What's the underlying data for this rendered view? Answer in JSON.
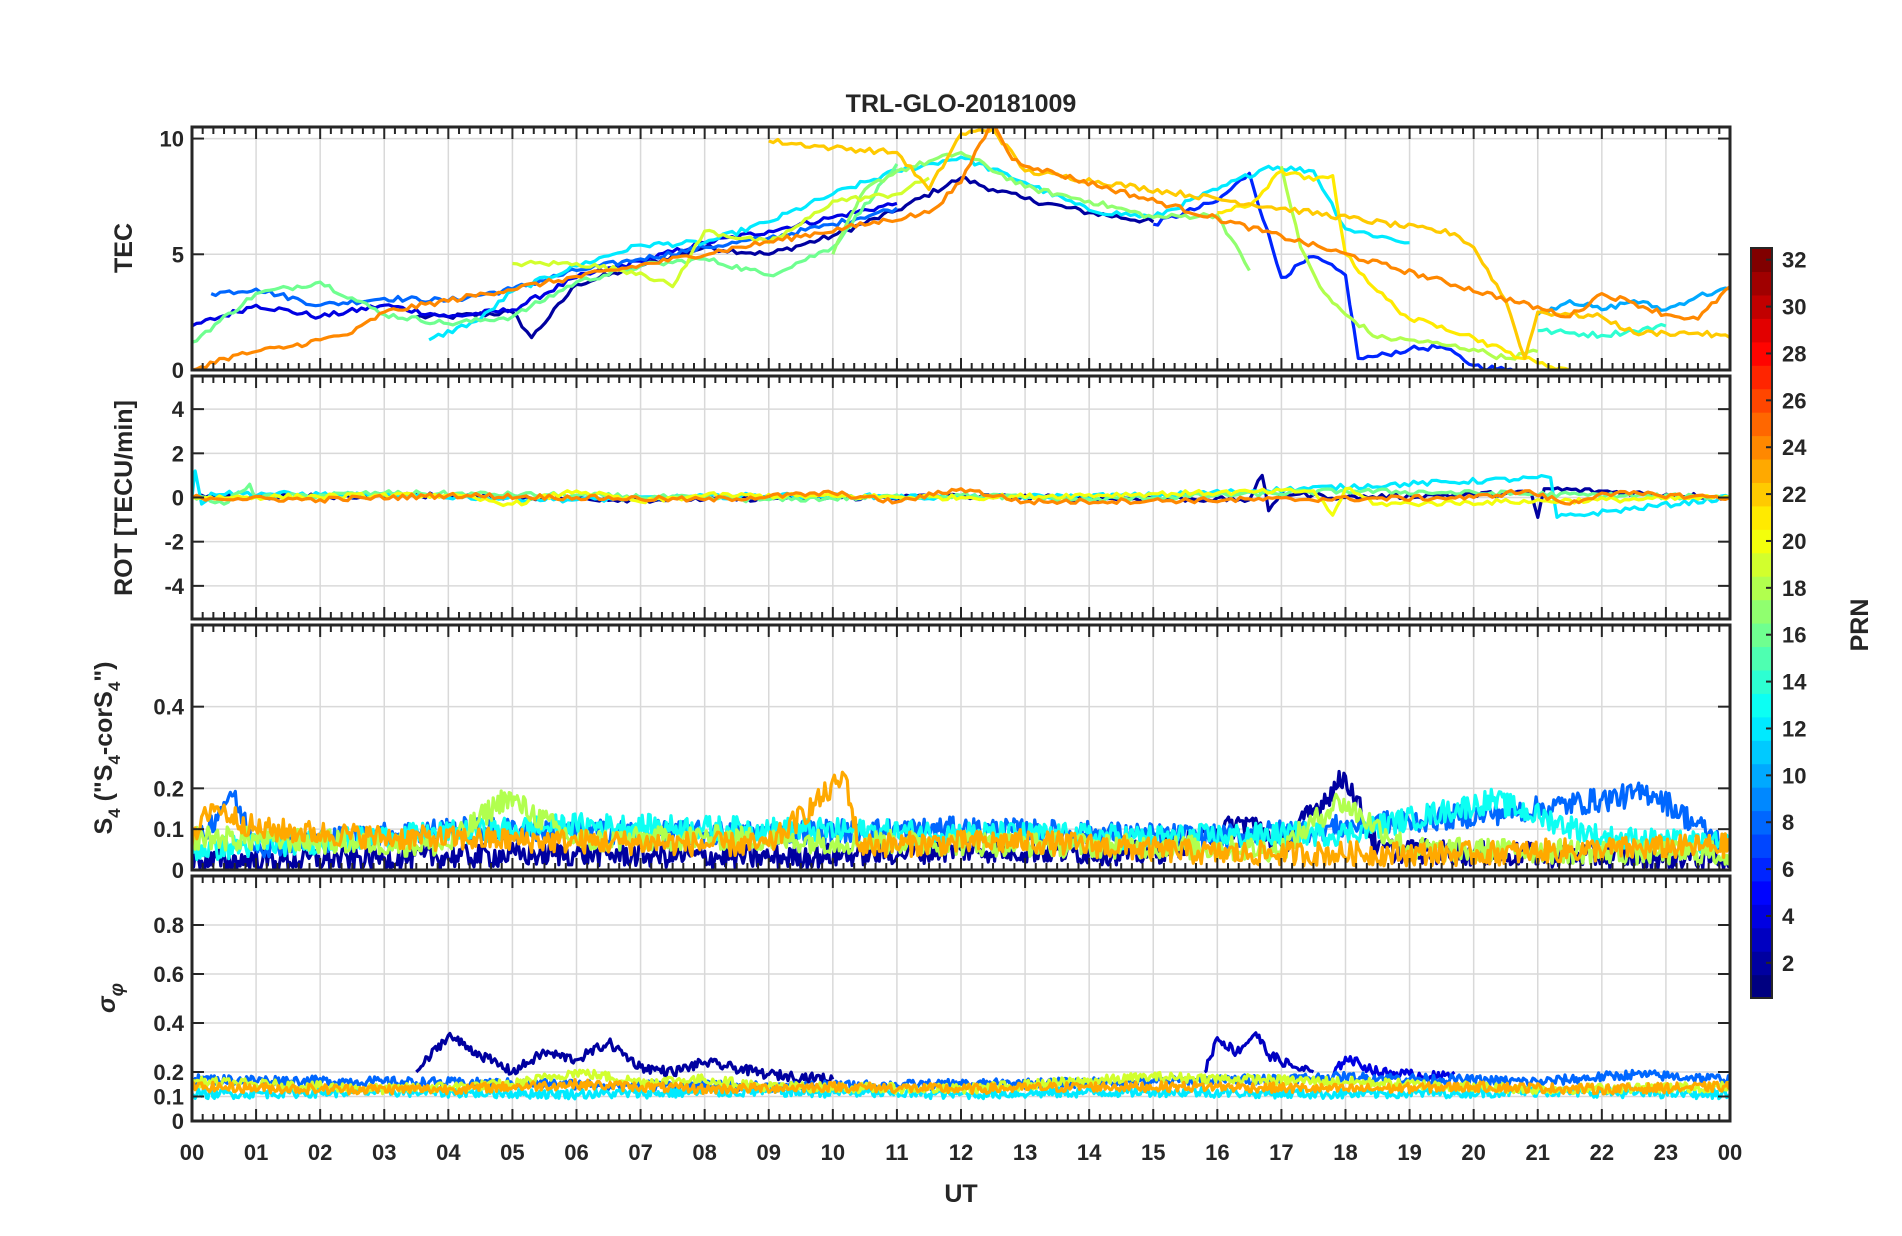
{
  "figure": {
    "title": "TRL-GLO-20181009",
    "xlabel": "UT",
    "x_ticks": [
      "00",
      "01",
      "02",
      "03",
      "04",
      "05",
      "06",
      "07",
      "08",
      "09",
      "10",
      "11",
      "12",
      "13",
      "14",
      "15",
      "16",
      "17",
      "18",
      "19",
      "20",
      "21",
      "22",
      "23",
      "00"
    ]
  },
  "colorbar": {
    "label": "PRN",
    "min": 1,
    "max": 32,
    "ticks": [
      "2",
      "4",
      "6",
      "8",
      "10",
      "12",
      "14",
      "16",
      "18",
      "20",
      "22",
      "24",
      "26",
      "28",
      "30",
      "32"
    ]
  },
  "chart_data": [
    {
      "type": "line",
      "id": "tec",
      "ylabel": "TEC",
      "ylim": [
        0,
        10.5
      ],
      "yticks": [
        "0",
        "5",
        "10"
      ],
      "ytick_values": [
        0,
        5,
        10
      ],
      "xlim": [
        0,
        24
      ],
      "series": [
        {
          "name": "PRN 2",
          "prn": 2,
          "x": [
            3.5,
            4,
            5,
            5.3,
            6,
            7,
            8,
            9,
            10,
            11,
            12,
            12.5,
            13,
            14,
            15
          ],
          "values": [
            2.3,
            2.3,
            2.5,
            1.4,
            3.7,
            4.5,
            5.3,
            5,
            5.8,
            6.9,
            8.3,
            7.8,
            7.4,
            6.8,
            6.4
          ]
        },
        {
          "name": "PRN 4",
          "prn": 4,
          "x": [
            0,
            1,
            2,
            3,
            4,
            5,
            6,
            7,
            8,
            9,
            10,
            11
          ],
          "values": [
            1.9,
            2.8,
            2.3,
            2.8,
            2.3,
            2.6,
            4,
            4.7,
            5.5,
            6,
            6.6,
            7.2
          ]
        },
        {
          "name": "PRN 6",
          "prn": 6,
          "x": [
            15,
            16,
            16.5,
            17,
            17.5,
            18,
            18.2,
            18.5,
            19,
            19.5,
            20,
            20.5,
            20.8
          ],
          "values": [
            6.3,
            7.3,
            8.5,
            4,
            4.9,
            4.1,
            0.5,
            0.6,
            0.9,
            1,
            0.2,
            0,
            0
          ]
        },
        {
          "name": "PRN 8",
          "prn": 8,
          "x": [
            0.3,
            1,
            2,
            3,
            4,
            5,
            6,
            7,
            8,
            9,
            10,
            11
          ],
          "values": [
            3.3,
            3.5,
            2.8,
            3.1,
            3,
            3.5,
            4.3,
            4.8,
            5.3,
            5.7,
            6.3,
            7
          ]
        },
        {
          "name": "PRN 10",
          "prn": 10,
          "x": [
            21,
            21.5,
            22,
            22.5,
            23,
            23.5,
            24
          ],
          "values": [
            2.4,
            3,
            2.6,
            3,
            2.6,
            3.2,
            3.5
          ]
        },
        {
          "name": "PRN 12",
          "prn": 12,
          "x": [
            3.7,
            4.5,
            5,
            6,
            7,
            8,
            9,
            10,
            11,
            12,
            13,
            14,
            15,
            16,
            16.8,
            17.5,
            18,
            19
          ],
          "values": [
            1.3,
            2.2,
            3.4,
            4.5,
            5.4,
            5.5,
            6.4,
            7.6,
            8.6,
            9.2,
            8.1,
            6.9,
            6.6,
            7.8,
            8.8,
            8.6,
            6.1,
            5.5
          ]
        },
        {
          "name": "PRN 14",
          "prn": 14,
          "x": [
            21,
            21.5,
            22,
            22.5,
            23
          ],
          "values": [
            1.7,
            1.6,
            1.5,
            1.7,
            1.9
          ]
        },
        {
          "name": "PRN 16",
          "prn": 16,
          "x": [
            0,
            1,
            2,
            3,
            4,
            5,
            6,
            7,
            8,
            9,
            10,
            11
          ],
          "values": [
            1.2,
            3.3,
            3.8,
            2.4,
            2,
            2.3,
            3.8,
            4.5,
            4.8,
            4.1,
            5.3,
            8.9
          ]
        },
        {
          "name": "PRN 17",
          "prn": 17,
          "x": [
            10,
            10.5,
            11,
            12,
            13,
            14,
            15,
            16,
            16.5
          ],
          "values": [
            5,
            7.8,
            8.6,
            9.4,
            7.9,
            7.3,
            6.6,
            6.7,
            4.3
          ]
        },
        {
          "name": "PRN 18",
          "prn": 18,
          "x": [
            17,
            17.3,
            17.6,
            17.8,
            18,
            18.5,
            19,
            19.5,
            20,
            20.5,
            21
          ],
          "values": [
            8.8,
            5.3,
            3.6,
            2.9,
            2.4,
            1.4,
            1.3,
            1.1,
            0.9,
            0.5,
            0.8
          ]
        },
        {
          "name": "PRN 19",
          "prn": 19,
          "x": [
            5,
            6,
            7,
            7.5,
            8,
            9,
            9.5,
            10,
            11,
            11.5
          ],
          "values": [
            4.6,
            4.6,
            4.2,
            3.6,
            6,
            5.5,
            6.3,
            7.3,
            7.6,
            8.3
          ]
        },
        {
          "name": "PRN 21",
          "prn": 21,
          "x": [
            16,
            16.5,
            17,
            17.5,
            17.8,
            18,
            18.5,
            19,
            19.5,
            20,
            20.5,
            21,
            21.5
          ],
          "values": [
            6.8,
            7.1,
            8.6,
            8.2,
            8.4,
            5,
            3.4,
            2.2,
            1.9,
            1.4,
            0.8,
            0.3,
            0
          ]
        },
        {
          "name": "PRN 22",
          "prn": 22,
          "x": [
            9,
            10,
            11,
            11.5,
            12,
            12.5,
            13,
            19.7,
            20,
            20.5,
            20.8,
            21,
            21.5,
            22,
            22.5,
            23,
            23.5,
            24
          ],
          "values": [
            9.9,
            9.6,
            9.4,
            7.8,
            10.2,
            10.4,
            8.6,
            5.9,
            5.3,
            3,
            0.5,
            2.5,
            2.4,
            2.3,
            1.6,
            1.6,
            1.6,
            1.4
          ]
        },
        {
          "name": "PRN 24",
          "prn": 24,
          "x": [
            0,
            0.5,
            1,
            1.5,
            2,
            2.5,
            3,
            11.5,
            12,
            12.3,
            12.5,
            12.8,
            13.2,
            21.5,
            22,
            22.5,
            23,
            23.5,
            24
          ],
          "values": [
            0,
            0.5,
            0.8,
            1,
            1.3,
            1.6,
            2.5,
            6.8,
            8.1,
            9.8,
            10.7,
            9.1,
            8.7,
            2.3,
            3.3,
            2.9,
            2.4,
            2.2,
            3.6
          ]
        }
      ]
    },
    {
      "type": "line",
      "id": "rot",
      "ylabel": "ROT [TECU/min]",
      "ylim": [
        -5.5,
        5.5
      ],
      "yticks": [
        "-4",
        "-2",
        "0",
        "2",
        "4"
      ],
      "ytick_values": [
        -4,
        -2,
        0,
        2,
        4
      ],
      "xlim": [
        0,
        24
      ],
      "series": [
        {
          "name": "PRN 2",
          "prn": 2,
          "x": [
            0,
            4,
            7,
            12,
            16.5,
            16.7,
            16.8,
            17,
            18,
            20.9,
            21,
            21.1,
            24
          ],
          "values": [
            0,
            0.1,
            -0.1,
            0.05,
            -0.1,
            1,
            -0.6,
            0.2,
            0,
            0.2,
            -0.9,
            0.4,
            0
          ]
        },
        {
          "name": "PRN 12",
          "prn": 12,
          "x": [
            0,
            0.05,
            0.15,
            0.3,
            3,
            6,
            9,
            12,
            15,
            21.2,
            21.3,
            24
          ],
          "values": [
            0,
            1.2,
            -0.3,
            0.2,
            0.1,
            -0.1,
            0.1,
            0,
            0.1,
            0.9,
            -0.9,
            0
          ]
        },
        {
          "name": "PRN 16",
          "prn": 16,
          "x": [
            0,
            0.5,
            0.9,
            1,
            3,
            6,
            9,
            12,
            14,
            16,
            18,
            24
          ],
          "values": [
            0.1,
            -0.3,
            0.6,
            0,
            0.2,
            0.1,
            -0.1,
            0.1,
            -0.1,
            0.1,
            0.3,
            0
          ]
        },
        {
          "name": "PRN 20",
          "prn": 20,
          "x": [
            0,
            4,
            5,
            6,
            7,
            8,
            12,
            17.5,
            17.8,
            18,
            18.5,
            24
          ],
          "values": [
            0,
            0.1,
            -0.3,
            0.3,
            -0.2,
            0.1,
            0,
            0.3,
            -0.8,
            0.4,
            -0.3,
            0
          ]
        },
        {
          "name": "PRN 24",
          "prn": 24,
          "x": [
            0,
            2,
            4,
            6,
            8,
            10,
            11,
            12,
            13,
            20,
            20.8,
            21.5,
            22,
            24
          ],
          "values": [
            0,
            -0.1,
            0.1,
            0,
            -0.1,
            0.2,
            -0.2,
            0.4,
            -0.2,
            0,
            0.3,
            -0.3,
            0.2,
            0
          ]
        }
      ]
    },
    {
      "type": "line",
      "id": "s4",
      "ylabel": "S4 (\"S4-corS4\")",
      "ylim": [
        0,
        0.6
      ],
      "yticks": [
        "0",
        "0.1",
        "0.2",
        "0.4"
      ],
      "ytick_values": [
        0,
        0.1,
        0.2,
        0.4
      ],
      "xlim": [
        0,
        24
      ],
      "series": [
        {
          "name": "PRN 2",
          "prn": 2,
          "x": [
            0,
            3,
            6,
            9,
            12,
            15,
            16.5,
            17,
            18,
            18.5,
            20,
            24
          ],
          "values": [
            0.02,
            0.03,
            0.04,
            0.03,
            0.05,
            0.04,
            0.12,
            0.06,
            0.23,
            0.05,
            0.04,
            0.03
          ]
        },
        {
          "name": "PRN 8",
          "prn": 8,
          "x": [
            0,
            0.6,
            1,
            4,
            8,
            12,
            16,
            19,
            21,
            22.8,
            24
          ],
          "values": [
            0.04,
            0.19,
            0.06,
            0.1,
            0.09,
            0.1,
            0.08,
            0.12,
            0.15,
            0.19,
            0.05
          ]
        },
        {
          "name": "PRN 13",
          "prn": 13,
          "x": [
            0,
            3,
            6,
            9,
            12,
            15,
            18,
            20.3,
            22,
            24
          ],
          "values": [
            0.05,
            0.08,
            0.11,
            0.1,
            0.09,
            0.08,
            0.09,
            0.17,
            0.08,
            0.06
          ]
        },
        {
          "name": "PRN 18",
          "prn": 18,
          "x": [
            0,
            2,
            4,
            4.9,
            6,
            8,
            10,
            14,
            17,
            17.9,
            19,
            24
          ],
          "values": [
            0.08,
            0.07,
            0.06,
            0.18,
            0.07,
            0.08,
            0.07,
            0.06,
            0.05,
            0.17,
            0.05,
            0.04
          ]
        },
        {
          "name": "PRN 23",
          "prn": 23,
          "x": [
            0,
            0.3,
            1,
            3,
            6,
            9,
            10.2,
            10.4,
            13,
            16,
            20,
            24
          ],
          "values": [
            0.06,
            0.16,
            0.1,
            0.08,
            0.07,
            0.06,
            0.23,
            0.06,
            0.07,
            0.04,
            0.04,
            0.06
          ]
        }
      ]
    },
    {
      "type": "line",
      "id": "sigma",
      "ylabel": "σφ",
      "ylim": [
        0,
        1
      ],
      "yticks": [
        "0",
        "0.1",
        "0.2",
        "0.4",
        "0.6",
        "0.8"
      ],
      "ytick_values": [
        0,
        0.1,
        0.2,
        0.4,
        0.6,
        0.8
      ],
      "xlim": [
        0,
        24
      ],
      "series": [
        {
          "name": "PRN 2",
          "prn": 2,
          "x": [
            3.5,
            4,
            4.5,
            5,
            5.5,
            6,
            6.5,
            7,
            7.5,
            8,
            9,
            10
          ],
          "values": [
            0.2,
            0.35,
            0.27,
            0.2,
            0.28,
            0.25,
            0.32,
            0.22,
            0.2,
            0.24,
            0.19,
            0.17
          ]
        },
        {
          "name": "PRN 3",
          "prn": 3,
          "x": [
            15.8,
            16,
            16.3,
            16.6,
            16.8,
            17.2,
            17.5
          ],
          "values": [
            0.2,
            0.34,
            0.28,
            0.36,
            0.27,
            0.22,
            0.2
          ]
        },
        {
          "name": "PRN 4",
          "prn": 4,
          "x": [
            17.8,
            18,
            18.5,
            19,
            19.5,
            19.7
          ],
          "values": [
            0.18,
            0.26,
            0.2,
            0.19,
            0.18,
            0.2
          ]
        },
        {
          "name": "PRN 8",
          "prn": 8,
          "x": [
            0,
            3,
            6,
            9,
            12,
            15,
            18,
            21,
            22.5,
            24
          ],
          "values": [
            0.17,
            0.16,
            0.15,
            0.14,
            0.15,
            0.16,
            0.18,
            0.16,
            0.19,
            0.17
          ]
        },
        {
          "name": "PRN 12",
          "prn": 12,
          "x": [
            0,
            3,
            6,
            9,
            12,
            15,
            18,
            21,
            24
          ],
          "values": [
            0.11,
            0.12,
            0.11,
            0.12,
            0.11,
            0.12,
            0.11,
            0.12,
            0.11
          ]
        },
        {
          "name": "PRN 19",
          "prn": 19,
          "x": [
            0,
            3,
            5,
            6,
            7,
            8,
            9,
            12,
            15,
            18,
            21,
            24
          ],
          "values": [
            0.16,
            0.13,
            0.15,
            0.2,
            0.16,
            0.17,
            0.14,
            0.13,
            0.18,
            0.16,
            0.13,
            0.14
          ]
        },
        {
          "name": "PRN 23",
          "prn": 23,
          "x": [
            0,
            2,
            4,
            6,
            8,
            10,
            12,
            14,
            16,
            18,
            20,
            22,
            24
          ],
          "values": [
            0.14,
            0.13,
            0.13,
            0.15,
            0.13,
            0.14,
            0.13,
            0.14,
            0.14,
            0.13,
            0.14,
            0.13,
            0.14
          ]
        }
      ]
    }
  ]
}
